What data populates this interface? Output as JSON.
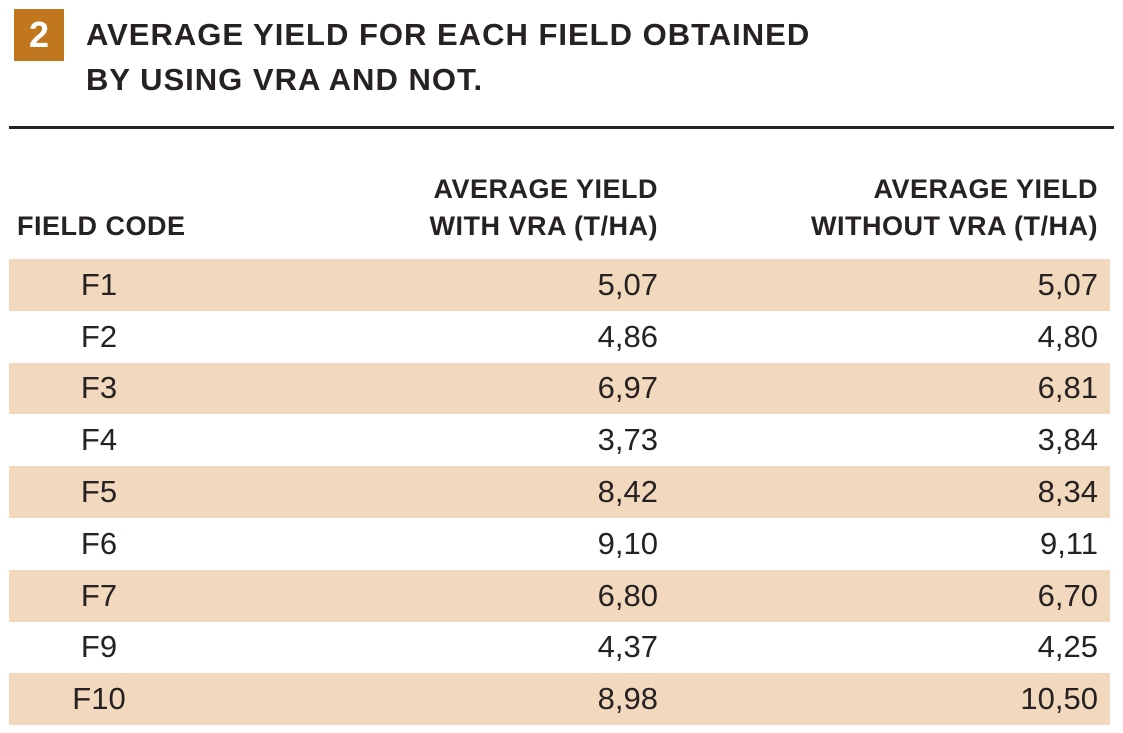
{
  "colors": {
    "badge_bg": "#C1771D",
    "row_stripe": "#F2D9BE",
    "ink": "#262122"
  },
  "figure": {
    "number": "2",
    "title_line1": "AVERAGE YIELD FOR EACH FIELD OBTAINED",
    "title_line2": "BY USING VRA AND NOT."
  },
  "table": {
    "headers": [
      {
        "line1": "",
        "line2": "FIELD CODE"
      },
      {
        "line1": "AVERAGE YIELD",
        "line2": "WITH VRA (T/HA)"
      },
      {
        "line1": "AVERAGE YIELD",
        "line2": "WITHOUT VRA (T/HA)"
      }
    ],
    "rows": [
      {
        "field": "F1",
        "with_vra": "5,07",
        "without_vra": "5,07"
      },
      {
        "field": "F2",
        "with_vra": "4,86",
        "without_vra": "4,80"
      },
      {
        "field": "F3",
        "with_vra": "6,97",
        "without_vra": "6,81"
      },
      {
        "field": "F4",
        "with_vra": "3,73",
        "without_vra": "3,84"
      },
      {
        "field": "F5",
        "with_vra": "8,42",
        "without_vra": "8,34"
      },
      {
        "field": "F6",
        "with_vra": "9,10",
        "without_vra": "9,11"
      },
      {
        "field": "F7",
        "with_vra": "6,80",
        "without_vra": "6,70"
      },
      {
        "field": "F9",
        "with_vra": "4,37",
        "without_vra": "4,25"
      },
      {
        "field": "F10",
        "with_vra": "8,98",
        "without_vra": "10,50"
      }
    ]
  },
  "chart_data": {
    "type": "table",
    "figure_number": "2",
    "title": "AVERAGE YIELD FOR EACH FIELD OBTAINED BY USING VRA AND NOT.",
    "columns": [
      "FIELD CODE",
      "AVERAGE YIELD WITH VRA (T/HA)",
      "AVERAGE YIELD WITHOUT VRA (T/HA)"
    ],
    "rows": [
      [
        "F1",
        5.07,
        5.07
      ],
      [
        "F2",
        4.86,
        4.8
      ],
      [
        "F3",
        6.97,
        6.81
      ],
      [
        "F4",
        3.73,
        3.84
      ],
      [
        "F5",
        8.42,
        8.34
      ],
      [
        "F6",
        9.1,
        9.11
      ],
      [
        "F7",
        6.8,
        6.7
      ],
      [
        "F9",
        4.37,
        4.25
      ],
      [
        "F10",
        8.98,
        10.5
      ]
    ],
    "decimal_separator": ",",
    "layout_hints": {
      "striped_rows": "odd rows peach #F2D9BE, even rows white",
      "value_alignment": "right",
      "field_code_alignment": "center"
    }
  }
}
